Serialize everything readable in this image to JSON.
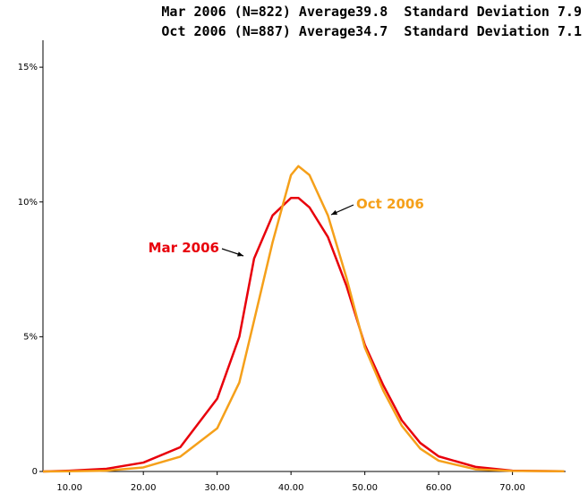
{
  "chart_data": {
    "type": "line",
    "title": [
      "Mar 2006 (N=822) Average39.8  Standard Deviation 7.9",
      "Oct 2006 (N=887) Average34.7  Standard Deviation 7.1"
    ],
    "x": [
      6.4,
      10,
      15,
      20,
      25,
      30,
      33,
      35,
      37.5,
      40,
      41,
      42.5,
      45,
      47.5,
      50,
      52.5,
      55,
      57.5,
      60,
      65,
      70,
      77
    ],
    "series": [
      {
        "name": "Mar 2006",
        "color": "#e8000b",
        "values": [
          0,
          0.03,
          0.1,
          0.33,
          0.9,
          2.7,
          5.0,
          7.9,
          9.5,
          10.15,
          10.15,
          9.8,
          8.7,
          6.9,
          4.7,
          3.2,
          1.9,
          1.06,
          0.56,
          0.17,
          0.03,
          0.01
        ]
      },
      {
        "name": "Oct 2006",
        "color": "#f5a01a",
        "values": [
          0,
          0.01,
          0.03,
          0.15,
          0.55,
          1.6,
          3.3,
          5.6,
          8.5,
          11.0,
          11.33,
          11.0,
          9.5,
          7.2,
          4.6,
          3.0,
          1.7,
          0.85,
          0.4,
          0.08,
          0.02,
          0.01
        ]
      }
    ],
    "xlim": [
      6.4,
      77.2
    ],
    "ylim": [
      0,
      16
    ],
    "xticks": [
      {
        "value": 10,
        "label": "10.00"
      },
      {
        "value": 20,
        "label": "20.00"
      },
      {
        "value": 30,
        "label": "30.00"
      },
      {
        "value": 40,
        "label": "40.00"
      },
      {
        "value": 50,
        "label": "50.00"
      },
      {
        "value": 60,
        "label": "60.00"
      },
      {
        "value": 70,
        "label": "70.00"
      }
    ],
    "yticks": [
      0,
      {
        "value": 5,
        "label": "5%"
      },
      {
        "value": 10,
        "label": "10%"
      },
      {
        "value": 15,
        "label": "15%"
      }
    ]
  }
}
